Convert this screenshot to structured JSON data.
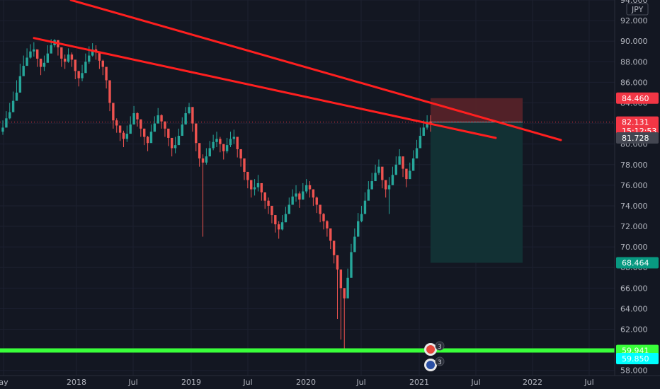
{
  "chart_data": {
    "type": "candlestick",
    "symbol_unit": "JPY",
    "y_range": [
      57.5,
      94.0
    ],
    "x_ticks": [
      "ay",
      "2018",
      "Jul",
      "2019",
      "Jul",
      "2020",
      "Jul",
      "2021",
      "Jul",
      "2022",
      "Jul"
    ],
    "y_ticks": [
      "94.000",
      "92.000",
      "90.000",
      "88.000",
      "86.000",
      "84.000",
      "82.000",
      "80.000",
      "78.000",
      "76.000",
      "74.000",
      "72.000",
      "70.000",
      "68.000",
      "66.000",
      "64.000",
      "62.000",
      "60.000",
      "58.000"
    ],
    "y_tick_values": [
      94,
      92,
      90,
      88,
      86,
      84,
      82,
      80,
      78,
      76,
      74,
      72,
      70,
      68,
      66,
      64,
      62,
      60,
      58
    ],
    "candles_close": [
      81.6,
      82.5,
      83.1,
      84.2,
      85.0,
      86.6,
      87.6,
      88.4,
      89.0,
      89.2,
      88.3,
      87.5,
      87.9,
      88.8,
      89.6,
      90.1,
      89.4,
      88.3,
      88.0,
      88.7,
      88.2,
      87.1,
      86.4,
      86.9,
      88.0,
      88.6,
      89.2,
      88.9,
      88.1,
      87.5,
      86.2,
      84.0,
      82.3,
      81.8,
      81.1,
      80.5,
      81.0,
      81.9,
      83.0,
      82.4,
      81.5,
      80.7,
      80.1,
      81.2,
      82.0,
      82.8,
      82.2,
      81.5,
      80.6,
      79.6,
      79.9,
      80.8,
      81.9,
      83.0,
      83.6,
      82.0,
      80.1,
      78.6,
      78.2,
      78.8,
      79.6,
      80.2,
      80.5,
      80.0,
      79.3,
      79.9,
      80.5,
      80.7,
      79.5,
      78.6,
      77.3,
      76.5,
      75.6,
      75.8,
      76.2,
      75.3,
      74.5,
      74.0,
      73.1,
      72.2,
      71.7,
      72.4,
      73.2,
      74.1,
      74.9,
      75.2,
      74.6,
      75.4,
      76.0,
      75.6,
      74.8,
      74.1,
      73.2,
      72.5,
      71.8,
      70.6,
      69.2,
      67.8,
      66.0,
      65.0,
      67.0,
      69.5,
      71.0,
      72.5,
      73.2,
      74.5,
      75.6,
      76.4,
      77.2,
      77.8,
      76.5,
      75.6,
      76.0,
      77.0,
      78.0,
      78.8,
      77.6,
      76.6,
      77.4,
      78.6,
      79.6,
      80.8,
      81.6,
      82.2,
      82.0
    ],
    "candles_high": [
      82.3,
      83.2,
      84.0,
      85.1,
      86.2,
      87.8,
      88.6,
      89.3,
      89.7,
      89.9,
      89.0,
      88.2,
      88.6,
      89.6,
      90.2,
      90.2,
      90.0,
      89.1,
      88.7,
      89.3,
      88.9,
      87.9,
      87.1,
      87.7,
      88.8,
      89.5,
      89.8,
      89.6,
      88.9,
      88.2,
      87.0,
      84.9,
      83.1,
      82.5,
      81.8,
      81.3,
      81.8,
      82.7,
      83.7,
      83.1,
      82.2,
      81.5,
      80.8,
      81.9,
      82.7,
      83.5,
      82.9,
      82.2,
      81.3,
      80.4,
      80.7,
      81.5,
      82.6,
      83.6,
      84.0,
      83.0,
      80.9,
      79.4,
      79.0,
      79.6,
      80.3,
      80.9,
      81.2,
      80.7,
      80.0,
      80.6,
      81.2,
      81.4,
      80.3,
      79.3,
      78.1,
      77.3,
      76.4,
      76.6,
      77.0,
      76.1,
      75.3,
      74.8,
      73.9,
      73.0,
      72.5,
      73.1,
      73.9,
      74.8,
      75.6,
      76.0,
      75.4,
      76.2,
      76.6,
      76.4,
      75.6,
      74.9,
      74.0,
      73.3,
      72.6,
      71.4,
      70.1,
      68.7,
      67.0,
      66.0,
      67.9,
      70.3,
      71.8,
      73.3,
      74.0,
      75.3,
      76.4,
      77.2,
      78.0,
      78.5,
      77.3,
      76.4,
      76.8,
      77.8,
      78.8,
      79.5,
      78.4,
      77.4,
      78.2,
      79.4,
      80.4,
      81.6,
      82.3,
      82.8,
      82.8
    ],
    "candles_low": [
      80.9,
      81.7,
      82.4,
      83.4,
      84.3,
      85.8,
      86.9,
      87.7,
      88.3,
      88.5,
      87.5,
      86.7,
      87.1,
      88.0,
      88.9,
      89.4,
      88.6,
      87.5,
      87.3,
      87.9,
      87.5,
      86.3,
      85.6,
      86.1,
      87.2,
      87.8,
      88.5,
      88.2,
      87.3,
      86.7,
      85.4,
      83.2,
      81.5,
      81.1,
      80.3,
      79.7,
      80.2,
      81.1,
      82.2,
      81.7,
      80.7,
      79.9,
      79.3,
      80.4,
      81.2,
      82.0,
      81.5,
      80.7,
      79.8,
      78.8,
      79.1,
      80.0,
      81.1,
      82.2,
      82.9,
      81.2,
      79.3,
      77.8,
      71.0,
      78.0,
      78.9,
      79.4,
      79.7,
      79.2,
      78.5,
      79.1,
      79.7,
      80.0,
      78.7,
      77.8,
      76.5,
      75.7,
      74.8,
      75.0,
      75.4,
      74.5,
      73.7,
      73.2,
      72.3,
      71.4,
      70.8,
      71.6,
      72.4,
      73.3,
      74.1,
      74.4,
      73.8,
      74.6,
      75.2,
      74.8,
      74.0,
      73.3,
      72.4,
      71.7,
      71.0,
      69.8,
      68.4,
      63.0,
      61.0,
      60.0,
      66.2,
      68.7,
      70.2,
      71.7,
      72.4,
      73.7,
      74.8,
      75.6,
      76.4,
      77.0,
      75.7,
      74.8,
      73.2,
      76.2,
      77.2,
      78.0,
      76.8,
      75.8,
      76.6,
      77.8,
      78.8,
      80.0,
      80.8,
      81.4,
      81.2
    ],
    "trendlines": [
      {
        "from": [
          0.0,
          96.0
        ],
        "to": [
          1.0,
          82.1
        ]
      },
      {
        "from": [
          0.0,
          90.3
        ],
        "to": [
          1.0,
          82.1
        ]
      }
    ],
    "position": {
      "stop": 84.46,
      "entry": 82.131,
      "target": 68.464
    },
    "horizontal_levels": [
      59.941
    ],
    "price_labels": [
      {
        "text": "84.460",
        "price": 84.46,
        "bg": "#f23645",
        "fg": "#ffffff"
      },
      {
        "text": "82.131",
        "price": 82.131,
        "bg": "#f23645",
        "fg": "#ffffff"
      },
      {
        "text": "15:12:53",
        "price": 81.3,
        "bg": "#f23645",
        "fg": "#ffffff"
      },
      {
        "text": "81.728",
        "price": 80.6,
        "bg": "#434651",
        "fg": "#ffffff"
      },
      {
        "text": "68.464",
        "price": 68.464,
        "bg": "#089981",
        "fg": "#ffffff"
      },
      {
        "text": "59.941",
        "price": 59.941,
        "bg": "#39ff3a",
        "fg": "#000000"
      },
      {
        "text": "59.850",
        "price": 59.15,
        "bg": "#00ffff",
        "fg": "#000000"
      }
    ],
    "event_markers": [
      "3",
      "3"
    ],
    "colors": {
      "background": "#131722",
      "up": "#26a69a",
      "down": "#ef5350",
      "trendline": "#ff1f1f",
      "support": "#39ff3a",
      "stop_zone": "#5a2229",
      "target_zone": "#123336"
    }
  }
}
